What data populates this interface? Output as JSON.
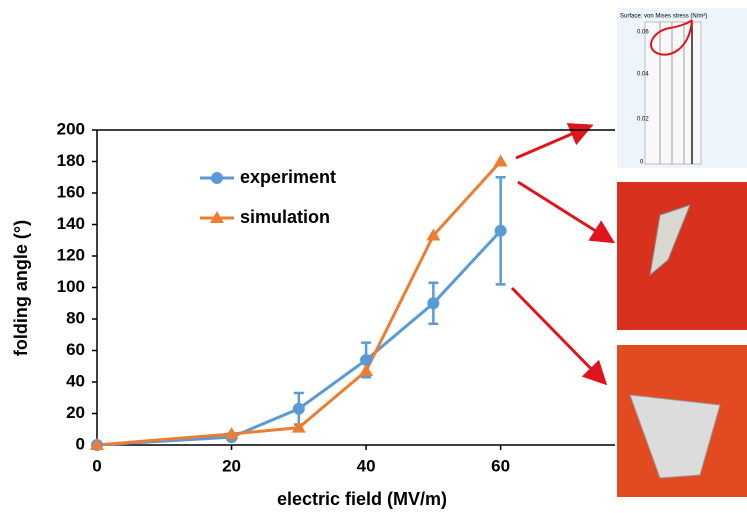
{
  "chart_data": {
    "type": "line",
    "xlabel": "electric field (MV/m)",
    "ylabel": "folding angle (°)",
    "x": [
      0,
      20,
      30,
      40,
      50,
      60
    ],
    "series": [
      {
        "name": "experiment",
        "color": "#5b9bd5",
        "marker": "circle",
        "values": [
          0,
          5,
          23,
          54,
          90,
          136
        ],
        "errors": [
          0,
          0,
          10,
          11,
          13,
          34
        ]
      },
      {
        "name": "simulation",
        "color": "#ed7d31",
        "marker": "triangle",
        "values": [
          0,
          7,
          11,
          47,
          133,
          180
        ]
      }
    ],
    "xlim": [
      0,
      77
    ],
    "xticks": [
      0,
      20,
      40,
      60
    ],
    "ylim": [
      0,
      200
    ],
    "yticks": [
      0,
      20,
      40,
      60,
      80,
      100,
      120,
      140,
      160,
      180,
      200
    ],
    "legend": "upper left"
  },
  "inset": {
    "title": "Surface: von Mises stress (N/m²)",
    "labels": [
      "0.06",
      "0.04",
      "0.02",
      "0"
    ]
  }
}
